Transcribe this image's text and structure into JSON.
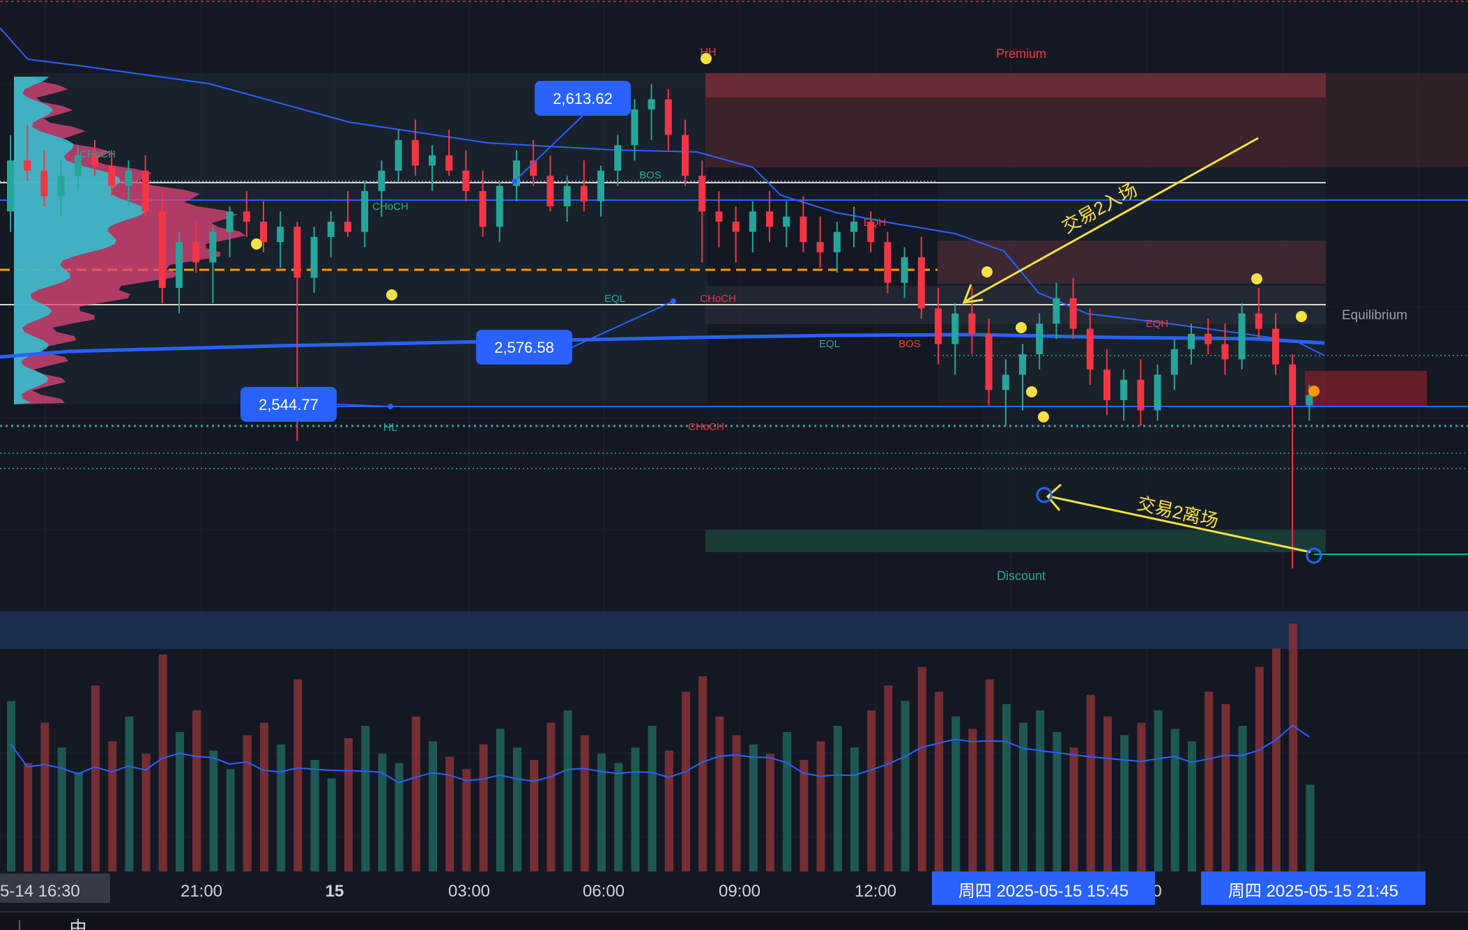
{
  "labels": {
    "premium": "Premium",
    "equilibrium": "Equilibrium",
    "discount": "Discount",
    "trade_entry": "交易2入场",
    "trade_exit": "交易2离场",
    "hh": "HH",
    "hl": "HL"
  },
  "structure_labels": [
    {
      "text": "CHoCH",
      "color": "#26a69a"
    },
    {
      "text": "CHoCH",
      "color": "#26a69a"
    },
    {
      "text": "BOS",
      "color": "#26a69a"
    },
    {
      "text": "EQH",
      "color": "#f23645"
    },
    {
      "text": "EQL",
      "color": "#26a69a"
    },
    {
      "text": "CHoCH",
      "color": "#f23645"
    },
    {
      "text": "EQL",
      "color": "#26a69a"
    },
    {
      "text": "BOS",
      "color": "#f23645"
    },
    {
      "text": "EQH",
      "color": "#f23645"
    },
    {
      "text": "CHoCH",
      "color": "#f23645"
    }
  ],
  "price_callouts": [
    "2,613.62",
    "2,576.58",
    "2,544.77"
  ],
  "x_axis": {
    "ticks": [
      "5-14  16:30",
      "21:00",
      "15",
      "03:00",
      "06:00",
      "09:00",
      "12:00",
      "0"
    ],
    "highlight_1": "周四 2025-05-15   15:45",
    "highlight_2": "周四 2025-05-15   21:45"
  },
  "footer_glyph": "由",
  "colors": {
    "bull": "#26a69a",
    "bear": "#f23645",
    "accent": "#2962ff",
    "annotation": "#f5e142",
    "background": "#141823"
  },
  "chart_data": {
    "type": "candlestick",
    "title": "",
    "x_unit": "15-minute bars",
    "ohlc": [
      [
        2590,
        2605,
        2586,
        2600
      ],
      [
        2600,
        2607,
        2596,
        2598
      ],
      [
        2598,
        2602,
        2591,
        2593
      ],
      [
        2593,
        2600,
        2589,
        2597
      ],
      [
        2597,
        2603,
        2594,
        2601
      ],
      [
        2601,
        2604,
        2597,
        2599
      ],
      [
        2599,
        2602,
        2593,
        2595
      ],
      [
        2595,
        2600,
        2591,
        2598
      ],
      [
        2598,
        2601,
        2589,
        2590
      ],
      [
        2590,
        2594,
        2572,
        2575
      ],
      [
        2575,
        2586,
        2570,
        2584
      ],
      [
        2584,
        2588,
        2578,
        2580
      ],
      [
        2580,
        2587,
        2572,
        2586
      ],
      [
        2586,
        2591,
        2581,
        2590
      ],
      [
        2590,
        2594,
        2585,
        2588
      ],
      [
        2588,
        2592,
        2582,
        2584
      ],
      [
        2584,
        2590,
        2579,
        2587
      ],
      [
        2587,
        2588,
        2545,
        2577
      ],
      [
        2577,
        2587,
        2574,
        2585
      ],
      [
        2585,
        2590,
        2581,
        2588
      ],
      [
        2588,
        2594,
        2585,
        2586
      ],
      [
        2586,
        2596,
        2583,
        2594
      ],
      [
        2594,
        2600,
        2589,
        2598
      ],
      [
        2598,
        2606,
        2596,
        2604
      ],
      [
        2604,
        2608,
        2597,
        2599
      ],
      [
        2599,
        2603,
        2594,
        2601
      ],
      [
        2601,
        2606,
        2597,
        2598
      ],
      [
        2598,
        2602,
        2592,
        2594
      ],
      [
        2594,
        2598,
        2585,
        2587
      ],
      [
        2587,
        2596,
        2584,
        2595
      ],
      [
        2595,
        2602,
        2592,
        2600
      ],
      [
        2600,
        2604,
        2595,
        2597
      ],
      [
        2597,
        2601,
        2590,
        2591
      ],
      [
        2591,
        2597,
        2588,
        2595
      ],
      [
        2595,
        2600,
        2590,
        2592
      ],
      [
        2592,
        2599,
        2589,
        2598
      ],
      [
        2598,
        2605,
        2595,
        2603
      ],
      [
        2603,
        2612,
        2600,
        2610
      ],
      [
        2610,
        2615,
        2604,
        2612
      ],
      [
        2612,
        2614,
        2602,
        2605
      ],
      [
        2605,
        2608,
        2595,
        2597
      ],
      [
        2597,
        2600,
        2580,
        2590
      ],
      [
        2590,
        2594,
        2583,
        2588
      ],
      [
        2588,
        2591,
        2580,
        2586
      ],
      [
        2586,
        2592,
        2582,
        2590
      ],
      [
        2590,
        2594,
        2584,
        2587
      ],
      [
        2587,
        2592,
        2583,
        2589
      ],
      [
        2589,
        2593,
        2582,
        2584
      ],
      [
        2584,
        2589,
        2579,
        2582
      ],
      [
        2582,
        2588,
        2578,
        2586
      ],
      [
        2586,
        2591,
        2583,
        2588
      ],
      [
        2588,
        2590,
        2582,
        2584
      ],
      [
        2584,
        2586,
        2574,
        2576
      ],
      [
        2576,
        2583,
        2573,
        2581
      ],
      [
        2581,
        2585,
        2569,
        2571
      ],
      [
        2571,
        2575,
        2560,
        2564
      ],
      [
        2564,
        2572,
        2558,
        2570
      ],
      [
        2570,
        2575,
        2562,
        2566
      ],
      [
        2566,
        2569,
        2552,
        2555
      ],
      [
        2555,
        2561,
        2548,
        2558
      ],
      [
        2558,
        2564,
        2551,
        2562
      ],
      [
        2562,
        2570,
        2559,
        2568
      ],
      [
        2568,
        2576,
        2565,
        2573
      ],
      [
        2573,
        2577,
        2565,
        2567
      ],
      [
        2567,
        2571,
        2556,
        2559
      ],
      [
        2559,
        2563,
        2550,
        2553
      ],
      [
        2553,
        2559,
        2549,
        2557
      ],
      [
        2557,
        2561,
        2548,
        2551
      ],
      [
        2551,
        2560,
        2549,
        2558
      ],
      [
        2558,
        2565,
        2555,
        2563
      ],
      [
        2563,
        2568,
        2560,
        2566
      ],
      [
        2566,
        2569,
        2562,
        2564
      ],
      [
        2564,
        2568,
        2558,
        2561
      ],
      [
        2561,
        2572,
        2559,
        2570
      ],
      [
        2570,
        2575,
        2565,
        2567
      ],
      [
        2567,
        2570,
        2558,
        2560
      ],
      [
        2560,
        2562,
        2520,
        2552
      ],
      [
        2552,
        2556,
        2549,
        2554
      ]
    ],
    "volume": [
      55,
      35,
      48,
      40,
      32,
      60,
      42,
      50,
      38,
      70,
      45,
      52,
      39,
      33,
      44,
      48,
      41,
      62,
      36,
      30,
      43,
      47,
      38,
      35,
      50,
      42,
      37,
      33,
      41,
      46,
      40,
      36,
      48,
      52,
      44,
      38,
      35,
      40,
      47,
      39,
      58,
      63,
      50,
      44,
      41,
      38,
      45,
      36,
      42,
      47,
      40,
      52,
      60,
      55,
      66,
      58,
      50,
      46,
      62,
      54,
      48,
      52,
      45,
      40,
      57,
      50,
      44,
      48,
      52,
      46,
      42,
      58,
      54,
      47,
      66,
      72,
      80,
      28
    ],
    "volume_ma": "line over volume bars",
    "levels": [
      {
        "name": "2,613.62",
        "value": 2613.62
      },
      {
        "name": "2,576.58",
        "value": 2576.58
      },
      {
        "name": "2,544.77",
        "value": 2544.77
      }
    ],
    "zones": [
      "Premium",
      "Equilibrium",
      "Discount"
    ],
    "grid": true
  }
}
